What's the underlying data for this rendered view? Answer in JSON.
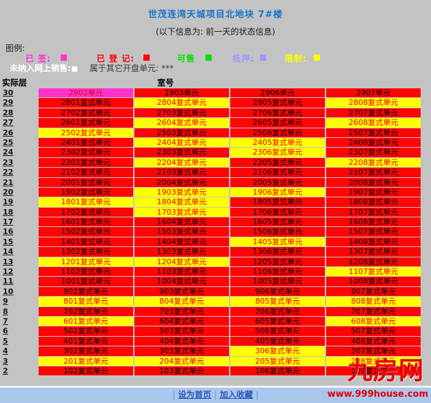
{
  "page": {
    "background": "#c3c3c3"
  },
  "header": {
    "title": "世茂连湾天城项目北地块 7#楼",
    "subtitle": "(以下信息为: 前一天的状态信息)"
  },
  "legend": {
    "label": "图例:",
    "items": [
      {
        "label": "已 签:",
        "status": "signed",
        "color": "#ff33cc"
      },
      {
        "label": "已 登 记:",
        "status": "registered",
        "color": "#ff0000"
      },
      {
        "label": "可售",
        "status": "available",
        "color": "#00e000"
      },
      {
        "label": "抵押:",
        "status": "mortgaged",
        "color": "#9999ff"
      },
      {
        "label": "限制:",
        "status": "restricted",
        "color": "#ffff00"
      }
    ],
    "not_online_label": "未纳入网上销售:",
    "not_online_color": "#ffffff",
    "other_opening_label": "属于其它开盘单元: ***"
  },
  "table": {
    "floor_header": "实际层",
    "room_header": "室号",
    "statuses": {
      "registered": {
        "bg": "#ff0404",
        "fg": "#000000"
      },
      "restricted": {
        "bg": "#ffff00",
        "fg": "#ee0000"
      },
      "signed": {
        "bg": "#ff33cc",
        "fg": "#dd0000"
      }
    },
    "rows": [
      {
        "floor": "30",
        "units": [
          {
            "label": "2902单元",
            "status": "signed"
          },
          {
            "label": "2903单元",
            "status": "registered"
          },
          {
            "label": "2906单元",
            "status": "registered"
          },
          {
            "label": "2907单元",
            "status": "registered"
          }
        ]
      },
      {
        "floor": "29",
        "units": [
          {
            "label": "2801复式单元",
            "status": "registered"
          },
          {
            "label": "2804复式单元",
            "status": "restricted"
          },
          {
            "label": "2805复式单元",
            "status": "registered"
          },
          {
            "label": "2808复式单元",
            "status": "restricted"
          }
        ]
      },
      {
        "floor": "28",
        "units": [
          {
            "label": "2702复式单元",
            "status": "registered"
          },
          {
            "label": "2703复式单元",
            "status": "registered"
          },
          {
            "label": "2706复式单元",
            "status": "registered"
          },
          {
            "label": "2707复式单元",
            "status": "registered"
          }
        ]
      },
      {
        "floor": "27",
        "units": [
          {
            "label": "2601复式单元",
            "status": "registered"
          },
          {
            "label": "2604复式单元",
            "status": "restricted"
          },
          {
            "label": "2605复式单元",
            "status": "registered"
          },
          {
            "label": "2608复式单元",
            "status": "restricted"
          }
        ]
      },
      {
        "floor": "26",
        "units": [
          {
            "label": "2502复式单元",
            "status": "restricted"
          },
          {
            "label": "2503复式单元",
            "status": "registered"
          },
          {
            "label": "2506复式单元",
            "status": "registered"
          },
          {
            "label": "2507复式单元",
            "status": "registered"
          }
        ]
      },
      {
        "floor": "25",
        "units": [
          {
            "label": "2401复式单元",
            "status": "registered"
          },
          {
            "label": "2404复式单元",
            "status": "restricted"
          },
          {
            "label": "2405复式单元",
            "status": "restricted"
          },
          {
            "label": "2408复式单元",
            "status": "registered"
          }
        ]
      },
      {
        "floor": "24",
        "units": [
          {
            "label": "2302复式单元",
            "status": "registered"
          },
          {
            "label": "2303复式单元",
            "status": "registered"
          },
          {
            "label": "2306复式单元",
            "status": "restricted"
          },
          {
            "label": "2307复式单元",
            "status": "registered"
          }
        ]
      },
      {
        "floor": "23",
        "units": [
          {
            "label": "2201复式单元",
            "status": "registered"
          },
          {
            "label": "2204复式单元",
            "status": "restricted"
          },
          {
            "label": "2205复式单元",
            "status": "registered"
          },
          {
            "label": "2208复式单元",
            "status": "restricted"
          }
        ]
      },
      {
        "floor": "22",
        "units": [
          {
            "label": "2102复式单元",
            "status": "registered"
          },
          {
            "label": "2103复式单元",
            "status": "registered"
          },
          {
            "label": "2106复式单元",
            "status": "registered"
          },
          {
            "label": "2107复式单元",
            "status": "registered"
          }
        ]
      },
      {
        "floor": "21",
        "units": [
          {
            "label": "2001复式单元",
            "status": "registered"
          },
          {
            "label": "2004复式单元",
            "status": "registered"
          },
          {
            "label": "2005复式单元",
            "status": "registered"
          },
          {
            "label": "2008复式单元",
            "status": "registered"
          }
        ]
      },
      {
        "floor": "20",
        "units": [
          {
            "label": "1902复式单元",
            "status": "registered"
          },
          {
            "label": "1903复式单元",
            "status": "restricted"
          },
          {
            "label": "1906复式单元",
            "status": "restricted"
          },
          {
            "label": "1907复式单元",
            "status": "registered"
          }
        ]
      },
      {
        "floor": "19",
        "units": [
          {
            "label": "1801复式单元",
            "status": "restricted"
          },
          {
            "label": "1804复式单元",
            "status": "restricted"
          },
          {
            "label": "1805复式单元",
            "status": "registered"
          },
          {
            "label": "1808复式单元",
            "status": "registered"
          }
        ]
      },
      {
        "floor": "18",
        "units": [
          {
            "label": "1702复式单元",
            "status": "registered"
          },
          {
            "label": "1703复式单元",
            "status": "restricted"
          },
          {
            "label": "1706复式单元",
            "status": "registered"
          },
          {
            "label": "1707复式单元",
            "status": "registered"
          }
        ]
      },
      {
        "floor": "17",
        "units": [
          {
            "label": "1601复式单元",
            "status": "registered"
          },
          {
            "label": "1604复式单元",
            "status": "registered"
          },
          {
            "label": "1605复式单元",
            "status": "registered"
          },
          {
            "label": "1608复式单元",
            "status": "registered"
          }
        ]
      },
      {
        "floor": "16",
        "units": [
          {
            "label": "1502复式单元",
            "status": "registered"
          },
          {
            "label": "1503复式单元",
            "status": "registered"
          },
          {
            "label": "1506复式单元",
            "status": "registered"
          },
          {
            "label": "1507复式单元",
            "status": "registered"
          }
        ]
      },
      {
        "floor": "15",
        "units": [
          {
            "label": "1401复式单元",
            "status": "registered"
          },
          {
            "label": "1404复式单元",
            "status": "registered"
          },
          {
            "label": "1405复式单元",
            "status": "restricted"
          },
          {
            "label": "1408复式单元",
            "status": "registered"
          }
        ]
      },
      {
        "floor": "14",
        "units": [
          {
            "label": "1302复式单元",
            "status": "registered"
          },
          {
            "label": "1303复式单元",
            "status": "registered"
          },
          {
            "label": "1306复式单元",
            "status": "registered"
          },
          {
            "label": "1307复式单元",
            "status": "registered"
          }
        ]
      },
      {
        "floor": "13",
        "units": [
          {
            "label": "1201复式单元",
            "status": "restricted"
          },
          {
            "label": "1204复式单元",
            "status": "restricted"
          },
          {
            "label": "1205复式单元",
            "status": "registered"
          },
          {
            "label": "1208复式单元",
            "status": "registered"
          }
        ]
      },
      {
        "floor": "12",
        "units": [
          {
            "label": "1102复式单元",
            "status": "registered"
          },
          {
            "label": "1103复式单元",
            "status": "registered"
          },
          {
            "label": "1106复式单元",
            "status": "registered"
          },
          {
            "label": "1107复式单元",
            "status": "restricted"
          }
        ]
      },
      {
        "floor": "11",
        "units": [
          {
            "label": "1001复式单元",
            "status": "registered"
          },
          {
            "label": "1004复式单元",
            "status": "registered"
          },
          {
            "label": "1005复式单元",
            "status": "registered"
          },
          {
            "label": "1008复式单元",
            "status": "registered"
          }
        ]
      },
      {
        "floor": "10",
        "units": [
          {
            "label": "902复式单元",
            "status": "registered"
          },
          {
            "label": "903复式单元",
            "status": "registered"
          },
          {
            "label": "906复式单元",
            "status": "registered"
          },
          {
            "label": "907复式单元",
            "status": "registered"
          }
        ]
      },
      {
        "floor": "9",
        "units": [
          {
            "label": "801复式单元",
            "status": "restricted"
          },
          {
            "label": "804复式单元",
            "status": "restricted"
          },
          {
            "label": "805复式单元",
            "status": "restricted"
          },
          {
            "label": "808复式单元",
            "status": "restricted"
          }
        ]
      },
      {
        "floor": "8",
        "units": [
          {
            "label": "702复式单元",
            "status": "registered"
          },
          {
            "label": "703复式单元",
            "status": "registered"
          },
          {
            "label": "706复式单元",
            "status": "registered"
          },
          {
            "label": "707复式单元",
            "status": "registered"
          }
        ]
      },
      {
        "floor": "7",
        "units": [
          {
            "label": "601复式单元",
            "status": "restricted"
          },
          {
            "label": "604复式单元",
            "status": "registered"
          },
          {
            "label": "605复式单元",
            "status": "registered"
          },
          {
            "label": "608复式单元",
            "status": "restricted"
          }
        ]
      },
      {
        "floor": "6",
        "units": [
          {
            "label": "502复式单元",
            "status": "registered"
          },
          {
            "label": "503复式单元",
            "status": "registered"
          },
          {
            "label": "506复式单元",
            "status": "registered"
          },
          {
            "label": "507复式单元",
            "status": "registered"
          }
        ]
      },
      {
        "floor": "5",
        "units": [
          {
            "label": "401复式单元",
            "status": "registered"
          },
          {
            "label": "404复式单元",
            "status": "registered"
          },
          {
            "label": "405复式单元",
            "status": "registered"
          },
          {
            "label": "408复式单元",
            "status": "registered"
          }
        ]
      },
      {
        "floor": "4",
        "units": [
          {
            "label": "302复式单元",
            "status": "registered"
          },
          {
            "label": "303复式单元",
            "status": "registered"
          },
          {
            "label": "306复式单元",
            "status": "restricted"
          },
          {
            "label": "307复式单元",
            "status": "registered"
          }
        ]
      },
      {
        "floor": "3",
        "units": [
          {
            "label": "201复式单元",
            "status": "restricted"
          },
          {
            "label": "204复式单元",
            "status": "restricted"
          },
          {
            "label": "205复式单元",
            "status": "restricted"
          },
          {
            "label": "208复式单元",
            "status": "restricted"
          }
        ]
      },
      {
        "floor": "2",
        "units": [
          {
            "label": "102复式单元",
            "status": "registered"
          },
          {
            "label": "103复式单元",
            "status": "registered"
          },
          {
            "label": "106复式单元",
            "status": "registered"
          },
          {
            "label": "107复式单元",
            "status": "registered"
          }
        ]
      }
    ]
  },
  "footer": {
    "separator": "|",
    "links": [
      {
        "label": "设为首页"
      },
      {
        "label": "加入收藏"
      }
    ]
  },
  "watermark": {
    "name": "九房网",
    "url": "www.999house.com",
    "color": "#e60000"
  }
}
